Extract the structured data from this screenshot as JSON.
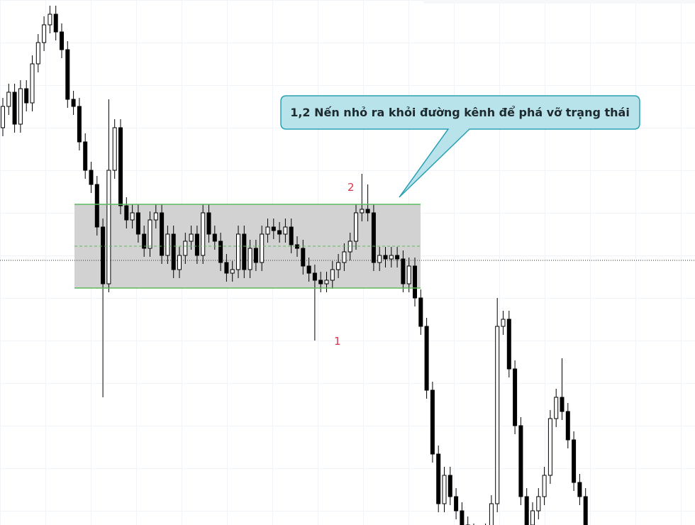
{
  "chart_data": {
    "type": "candlestick",
    "ylim": [
      0,
      740
    ],
    "up_color": "#ffffff",
    "down_color": "#000000",
    "channel": {
      "top": 452,
      "middle": 393,
      "bottom": 334,
      "color": "#5cb85c",
      "fill": "#d0d0d0"
    },
    "reference_line": 373,
    "annotations": [
      "1",
      "2"
    ],
    "callout": "1,2 Nến nhỏ ra khỏi đường kênh để phá vỡ trạng thái",
    "open": [
      560,
      590,
      610,
      565,
      615,
      595,
      650,
      680,
      705,
      720,
      695,
      670,
      600,
      590,
      540,
      500,
      480,
      420,
      340,
      500,
      560,
      450,
      430,
      440,
      410,
      390,
      430,
      440,
      380,
      410,
      360,
      380,
      400,
      410,
      380,
      440,
      410,
      400,
      370,
      355,
      360,
      410,
      360,
      390,
      370,
      410,
      420,
      415,
      410,
      420,
      395,
      390,
      365,
      355,
      345,
      340,
      345,
      360,
      370,
      385,
      400,
      440,
      445,
      440,
      370,
      380,
      375,
      380,
      375,
      340,
      365,
      320,
      280,
      190,
      100,
      30,
      70,
      40,
      20,
      0,
      -10,
      -20,
      -20,
      -10,
      30,
      280,
      290,
      220,
      140,
      40,
      0,
      20,
      40,
      70,
      150,
      180,
      160,
      120,
      60,
      40
    ],
    "high": [
      602,
      622,
      622,
      627,
      627,
      662,
      692,
      717,
      732,
      732,
      707,
      682,
      612,
      602,
      552,
      512,
      492,
      432,
      600,
      572,
      572,
      462,
      452,
      452,
      422,
      442,
      452,
      452,
      422,
      422,
      392,
      412,
      422,
      422,
      452,
      452,
      422,
      412,
      382,
      372,
      422,
      422,
      402,
      402,
      422,
      432,
      432,
      427,
      432,
      432,
      407,
      402,
      377,
      367,
      357,
      357,
      372,
      382,
      397,
      412,
      452,
      495,
      480,
      452,
      392,
      392,
      392,
      392,
      387,
      377,
      377,
      332,
      292,
      202,
      112,
      82,
      82,
      52,
      32,
      12,
      2,
      -8,
      2,
      42,
      320,
      302,
      302,
      232,
      152,
      52,
      32,
      52,
      82,
      162,
      192,
      235,
      172,
      132,
      72,
      52
    ],
    "low": [
      548,
      578,
      553,
      553,
      583,
      583,
      638,
      668,
      693,
      683,
      658,
      588,
      578,
      528,
      488,
      468,
      408,
      180,
      328,
      488,
      438,
      418,
      418,
      398,
      378,
      378,
      418,
      368,
      368,
      348,
      348,
      368,
      388,
      368,
      368,
      398,
      388,
      358,
      343,
      343,
      348,
      348,
      348,
      358,
      358,
      398,
      403,
      398,
      398,
      383,
      378,
      353,
      343,
      260,
      328,
      328,
      333,
      348,
      358,
      373,
      388,
      428,
      428,
      358,
      358,
      363,
      363,
      363,
      328,
      328,
      308,
      268,
      178,
      88,
      18,
      18,
      28,
      8,
      -12,
      -22,
      -32,
      -32,
      -32,
      -22,
      18,
      268,
      208,
      128,
      28,
      -12,
      -12,
      8,
      28,
      58,
      138,
      148,
      108,
      48,
      28,
      -12
    ],
    "close": [
      590,
      610,
      565,
      615,
      595,
      650,
      680,
      705,
      720,
      695,
      670,
      600,
      590,
      540,
      500,
      480,
      420,
      340,
      500,
      560,
      450,
      430,
      440,
      410,
      390,
      430,
      440,
      380,
      410,
      360,
      380,
      400,
      410,
      380,
      440,
      410,
      400,
      370,
      355,
      360,
      410,
      360,
      390,
      370,
      410,
      420,
      415,
      410,
      420,
      395,
      390,
      365,
      355,
      345,
      340,
      345,
      360,
      370,
      385,
      400,
      440,
      445,
      440,
      370,
      380,
      375,
      380,
      375,
      340,
      365,
      320,
      280,
      190,
      100,
      30,
      70,
      40,
      20,
      0,
      -10,
      -20,
      -20,
      -10,
      30,
      280,
      290,
      220,
      140,
      40,
      0,
      20,
      40,
      70,
      150,
      180,
      160,
      120,
      60,
      40,
      0
    ]
  }
}
